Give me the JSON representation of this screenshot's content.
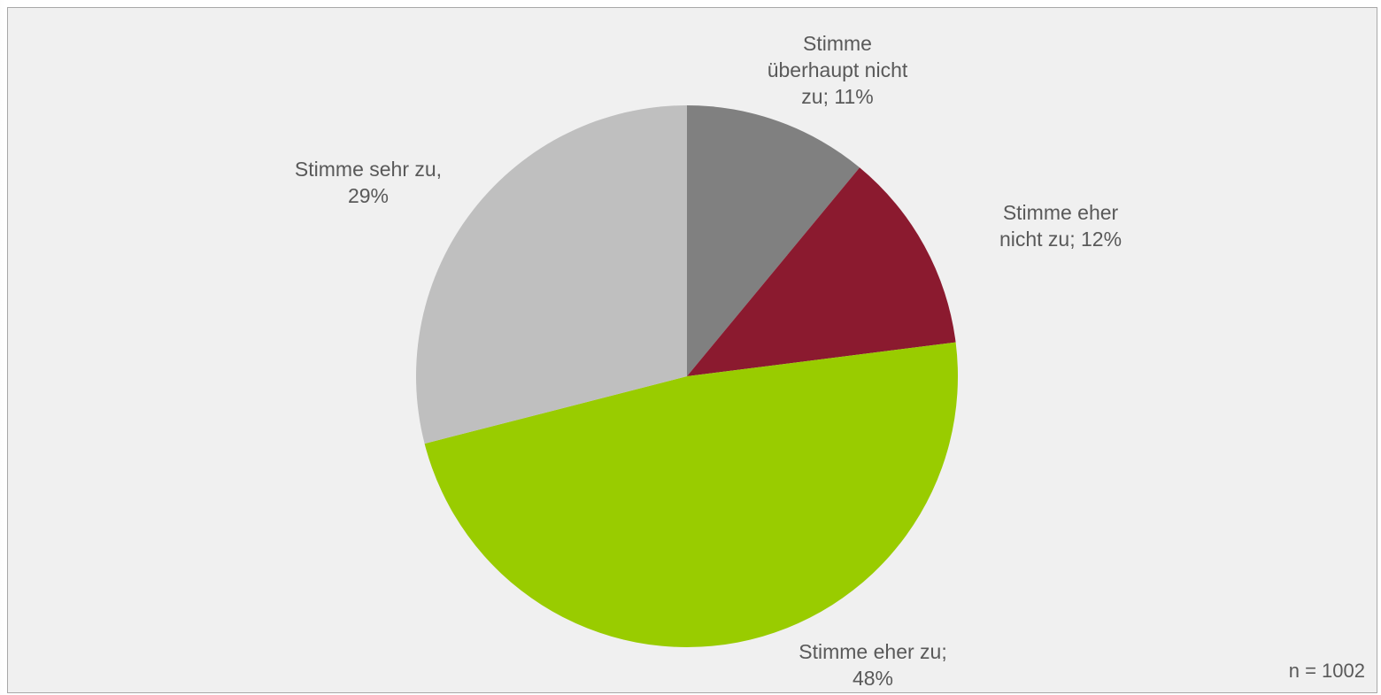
{
  "chart_data": {
    "type": "pie",
    "title": "",
    "start_angle": "12 o'clock",
    "direction": "clockwise",
    "slices": [
      {
        "name": "Stimme überhaupt nicht zu",
        "value": 11,
        "color": "#808080",
        "label": "Stimme\nüberhaupt nicht\nzu; 11%"
      },
      {
        "name": "Stimme eher nicht zu",
        "value": 12,
        "color": "#8b1a2f",
        "label": "Stimme eher\nnicht zu; 12%"
      },
      {
        "name": "Stimme eher zu",
        "value": 48,
        "color": "#99cc00",
        "label": "Stimme eher zu;\n48%"
      },
      {
        "name": "Stimme sehr zu",
        "value": 29,
        "color": "#bfbfbf",
        "label": "Stimme sehr zu,\n29%"
      }
    ],
    "unit": "%"
  },
  "note": {
    "sample_size": "n = 1002"
  }
}
